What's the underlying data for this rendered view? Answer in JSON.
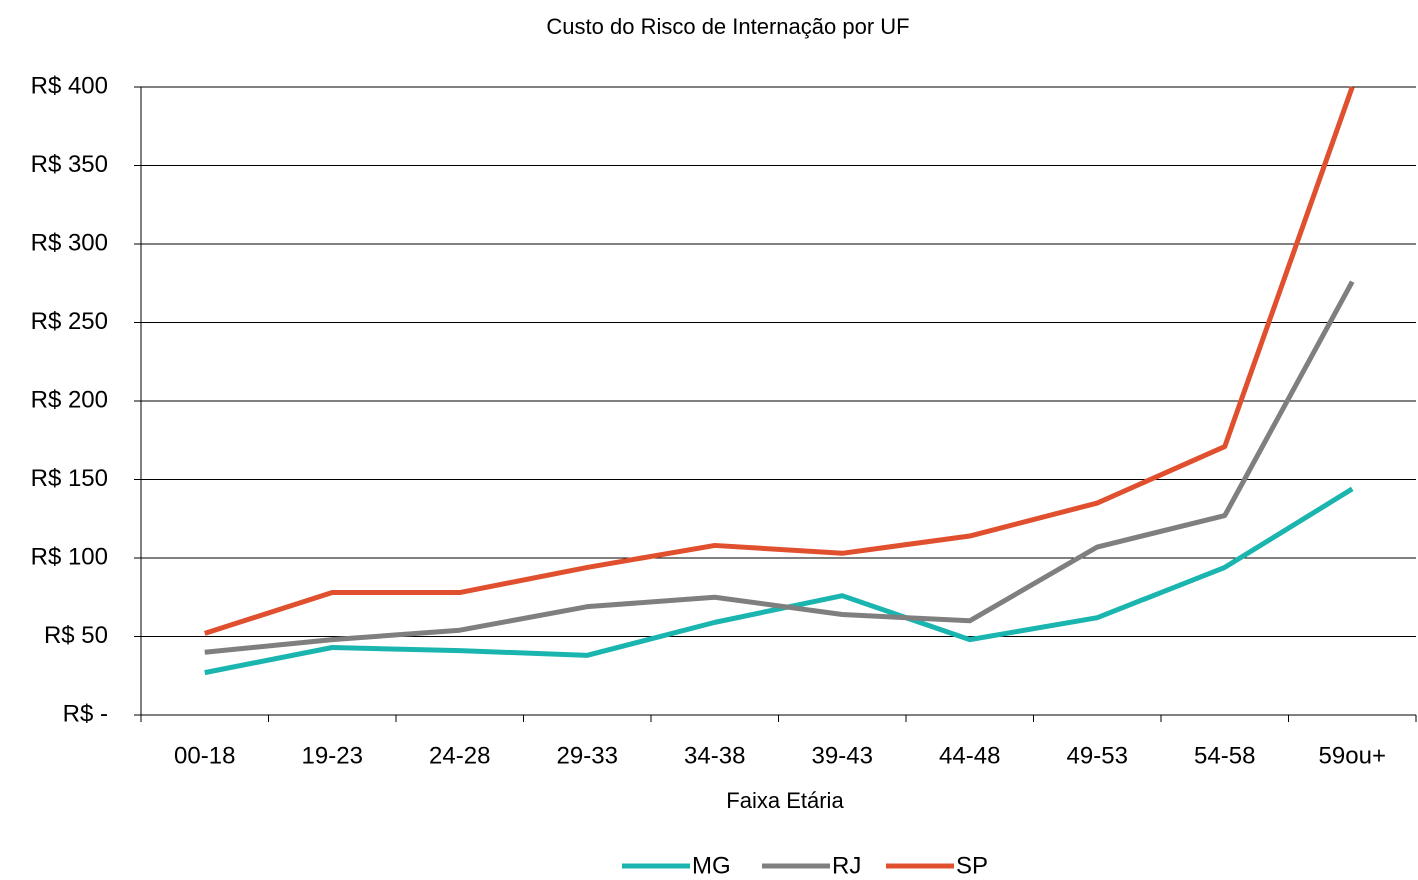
{
  "chart_data": {
    "type": "line",
    "title": "Custo do Risco de Internação por UF",
    "x_label": "Faixa Etária",
    "categories": [
      "00-18",
      "19-23",
      "24-28",
      "29-33",
      "34-38",
      "39-43",
      "44-48",
      "49-53",
      "54-58",
      "59ou+"
    ],
    "series": [
      {
        "name": "MG",
        "color": "#1bb5b0",
        "values": [
          27,
          43,
          41,
          38,
          59,
          76,
          48,
          62,
          94,
          144
        ]
      },
      {
        "name": "RJ",
        "color": "#7f7f7f",
        "values": [
          40,
          48,
          54,
          69,
          75,
          64,
          60,
          107,
          127,
          276
        ]
      },
      {
        "name": "SP",
        "color": "#e0502f",
        "values": [
          52,
          78,
          78,
          94,
          108,
          103,
          114,
          135,
          171,
          400
        ]
      }
    ],
    "ylim": [
      0,
      400
    ],
    "yticks": [
      {
        "value": 0,
        "label": "R$ -"
      },
      {
        "value": 50,
        "label": "R$ 50"
      },
      {
        "value": 100,
        "label": "R$ 100"
      },
      {
        "value": 150,
        "label": "R$ 150"
      },
      {
        "value": 200,
        "label": "R$ 200"
      },
      {
        "value": 250,
        "label": "R$ 250"
      },
      {
        "value": 300,
        "label": "R$ 300"
      },
      {
        "value": 350,
        "label": "R$ 350"
      },
      {
        "value": 400,
        "label": "R$ 400"
      }
    ],
    "grid": true,
    "legend": "bottom"
  }
}
